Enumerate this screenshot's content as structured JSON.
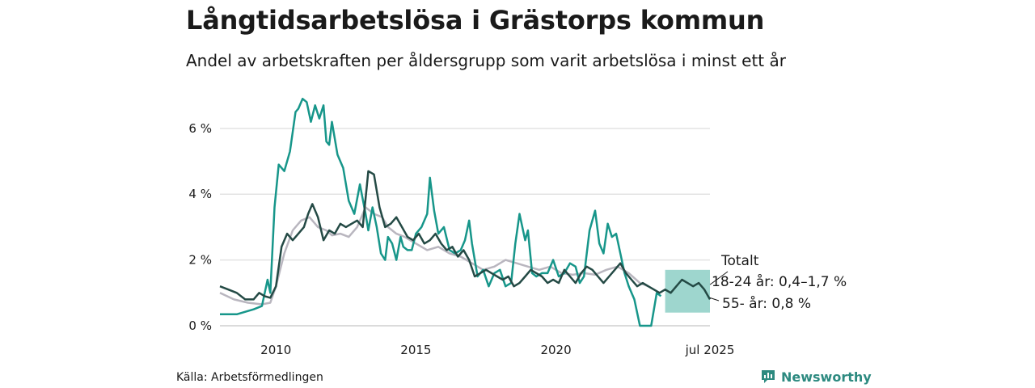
{
  "title": "Långtidsarbetslösa i Grästorps kommun",
  "subtitle": "Andel av arbetskraften per åldersgrupp som varit arbetslösa i minst ett år",
  "source": "Källa: Arbetsförmedlingen",
  "brand": {
    "name": "Newsworthy",
    "icon": "bar-chart-icon",
    "color": "#2d8a80"
  },
  "chart_data": {
    "type": "line",
    "y_ticks": [
      0,
      2,
      4,
      6
    ],
    "y_tick_labels": [
      "0 %",
      "2 %",
      "4 %",
      "6 %"
    ],
    "ylim": [
      0,
      7.2
    ],
    "x_ticks": [
      2010,
      2015,
      2020,
      2025.5
    ],
    "x_tick_labels": [
      "2010",
      "2015",
      "2020",
      "jul 2025"
    ],
    "xlim": [
      2008,
      2025.5
    ],
    "grid": true,
    "colors": {
      "totalt": "#b9b6bf",
      "youth": "#17968a",
      "older": "#244a45",
      "band": "#7dc8bd"
    },
    "annotations": {
      "totalt": "Totalt",
      "youth": "18-24 år: 0,4–1,7 %",
      "older": "55- år: 0,8 %"
    },
    "youth_band": {
      "x_start": 2023.9,
      "x_end": 2025.5,
      "low": 0.4,
      "high": 1.7
    },
    "series": [
      {
        "key": "totalt",
        "x": [
          2008.0,
          2008.5,
          2009.0,
          2009.5,
          2009.8,
          2010.0,
          2010.3,
          2010.6,
          2010.9,
          2011.2,
          2011.5,
          2011.8,
          2012.0,
          2012.3,
          2012.6,
          2012.9,
          2013.2,
          2013.5,
          2013.8,
          2014.0,
          2014.3,
          2014.6,
          2015.0,
          2015.4,
          2015.8,
          2016.2,
          2016.6,
          2017.0,
          2017.4,
          2017.8,
          2018.2,
          2018.6,
          2019.0,
          2019.4,
          2019.8,
          2020.2,
          2020.6,
          2021.0,
          2021.4,
          2021.8,
          2022.2,
          2022.6,
          2023.0,
          2023.3
        ],
        "values": [
          1.0,
          0.8,
          0.7,
          0.65,
          0.7,
          1.2,
          2.2,
          2.9,
          3.2,
          3.3,
          3.0,
          2.9,
          2.75,
          2.8,
          2.7,
          3.0,
          3.6,
          3.4,
          3.3,
          3.0,
          2.8,
          2.7,
          2.5,
          2.3,
          2.4,
          2.2,
          2.1,
          1.9,
          1.7,
          1.8,
          2.0,
          1.9,
          1.8,
          1.7,
          1.8,
          1.6,
          1.55,
          1.6,
          1.55,
          1.7,
          1.8,
          1.6,
          1.3,
          1.2
        ]
      },
      {
        "key": "youth",
        "x": [
          2008.0,
          2008.6,
          2009.2,
          2009.5,
          2009.7,
          2009.8,
          2009.95,
          2010.1,
          2010.3,
          2010.5,
          2010.7,
          2010.8,
          2010.95,
          2011.1,
          2011.25,
          2011.4,
          2011.55,
          2011.7,
          2011.8,
          2011.9,
          2012.0,
          2012.2,
          2012.4,
          2012.6,
          2012.8,
          2013.0,
          2013.2,
          2013.3,
          2013.45,
          2013.6,
          2013.75,
          2013.9,
          2014.0,
          2014.15,
          2014.3,
          2014.45,
          2014.55,
          2014.7,
          2014.85,
          2015.0,
          2015.2,
          2015.4,
          2015.5,
          2015.65,
          2015.8,
          2016.0,
          2016.2,
          2016.4,
          2016.6,
          2016.75,
          2016.9,
          2017.0,
          2017.2,
          2017.4,
          2017.6,
          2017.8,
          2018.0,
          2018.2,
          2018.4,
          2018.55,
          2018.7,
          2018.9,
          2019.0,
          2019.15,
          2019.3,
          2019.5,
          2019.7,
          2019.9,
          2020.1,
          2020.3,
          2020.5,
          2020.7,
          2020.85,
          2021.0,
          2021.2,
          2021.4,
          2021.55,
          2021.7,
          2021.85,
          2022.0,
          2022.15,
          2022.3,
          2022.45,
          2022.6,
          2022.8,
          2023.0,
          2023.2,
          2023.4,
          2023.6,
          2023.75
        ],
        "values": [
          0.35,
          0.35,
          0.5,
          0.6,
          1.4,
          1.0,
          3.6,
          4.9,
          4.7,
          5.3,
          6.5,
          6.6,
          6.9,
          6.8,
          6.2,
          6.7,
          6.3,
          6.7,
          5.6,
          5.5,
          6.2,
          5.2,
          4.8,
          3.8,
          3.4,
          4.3,
          3.4,
          2.9,
          3.6,
          3.0,
          2.2,
          2.0,
          2.7,
          2.5,
          2.0,
          2.7,
          2.4,
          2.3,
          2.3,
          2.8,
          3.0,
          3.4,
          4.5,
          3.5,
          2.8,
          3.0,
          2.3,
          2.2,
          2.3,
          2.6,
          3.2,
          2.5,
          1.5,
          1.7,
          1.2,
          1.6,
          1.7,
          1.2,
          1.3,
          2.5,
          3.4,
          2.6,
          2.9,
          1.6,
          1.5,
          1.6,
          1.6,
          2.0,
          1.5,
          1.6,
          1.9,
          1.8,
          1.3,
          1.5,
          2.9,
          3.5,
          2.5,
          2.2,
          3.1,
          2.7,
          2.8,
          2.2,
          1.6,
          1.2,
          0.8,
          0.0,
          0.0,
          0.0,
          1.0,
          0.9
        ]
      },
      {
        "key": "older",
        "x": [
          2008.0,
          2008.3,
          2008.6,
          2008.9,
          2009.2,
          2009.4,
          2009.6,
          2009.8,
          2010.0,
          2010.2,
          2010.4,
          2010.6,
          2010.8,
          2011.0,
          2011.15,
          2011.3,
          2011.5,
          2011.7,
          2011.9,
          2012.1,
          2012.3,
          2012.5,
          2012.7,
          2012.9,
          2013.1,
          2013.3,
          2013.5,
          2013.7,
          2013.9,
          2014.1,
          2014.3,
          2014.5,
          2014.7,
          2014.9,
          2015.1,
          2015.3,
          2015.5,
          2015.7,
          2015.9,
          2016.1,
          2016.3,
          2016.5,
          2016.7,
          2016.9,
          2017.1,
          2017.3,
          2017.5,
          2017.7,
          2017.9,
          2018.1,
          2018.3,
          2018.5,
          2018.7,
          2018.9,
          2019.1,
          2019.3,
          2019.5,
          2019.7,
          2019.9,
          2020.1,
          2020.3,
          2020.5,
          2020.7,
          2020.9,
          2021.1,
          2021.3,
          2021.5,
          2021.7,
          2021.9,
          2022.1,
          2022.3,
          2022.5,
          2022.7,
          2022.9,
          2023.1,
          2023.3,
          2023.5,
          2023.7,
          2023.9,
          2024.1,
          2024.3,
          2024.5,
          2024.7,
          2024.9,
          2025.1,
          2025.3,
          2025.5
        ],
        "values": [
          1.2,
          1.1,
          1.0,
          0.8,
          0.8,
          1.0,
          0.9,
          0.85,
          1.2,
          2.4,
          2.8,
          2.6,
          2.8,
          3.0,
          3.4,
          3.7,
          3.3,
          2.6,
          2.9,
          2.8,
          3.1,
          3.0,
          3.1,
          3.2,
          3.0,
          4.7,
          4.6,
          3.6,
          3.0,
          3.1,
          3.3,
          3.0,
          2.7,
          2.6,
          2.8,
          2.5,
          2.6,
          2.8,
          2.5,
          2.3,
          2.4,
          2.1,
          2.3,
          2.0,
          1.5,
          1.6,
          1.7,
          1.6,
          1.5,
          1.4,
          1.5,
          1.2,
          1.3,
          1.5,
          1.7,
          1.6,
          1.5,
          1.3,
          1.4,
          1.3,
          1.7,
          1.5,
          1.3,
          1.6,
          1.8,
          1.7,
          1.5,
          1.3,
          1.5,
          1.7,
          1.9,
          1.6,
          1.4,
          1.2,
          1.3,
          1.2,
          1.1,
          1.0,
          1.1,
          1.0,
          1.2,
          1.4,
          1.3,
          1.2,
          1.3,
          1.1,
          0.8
        ]
      }
    ]
  }
}
